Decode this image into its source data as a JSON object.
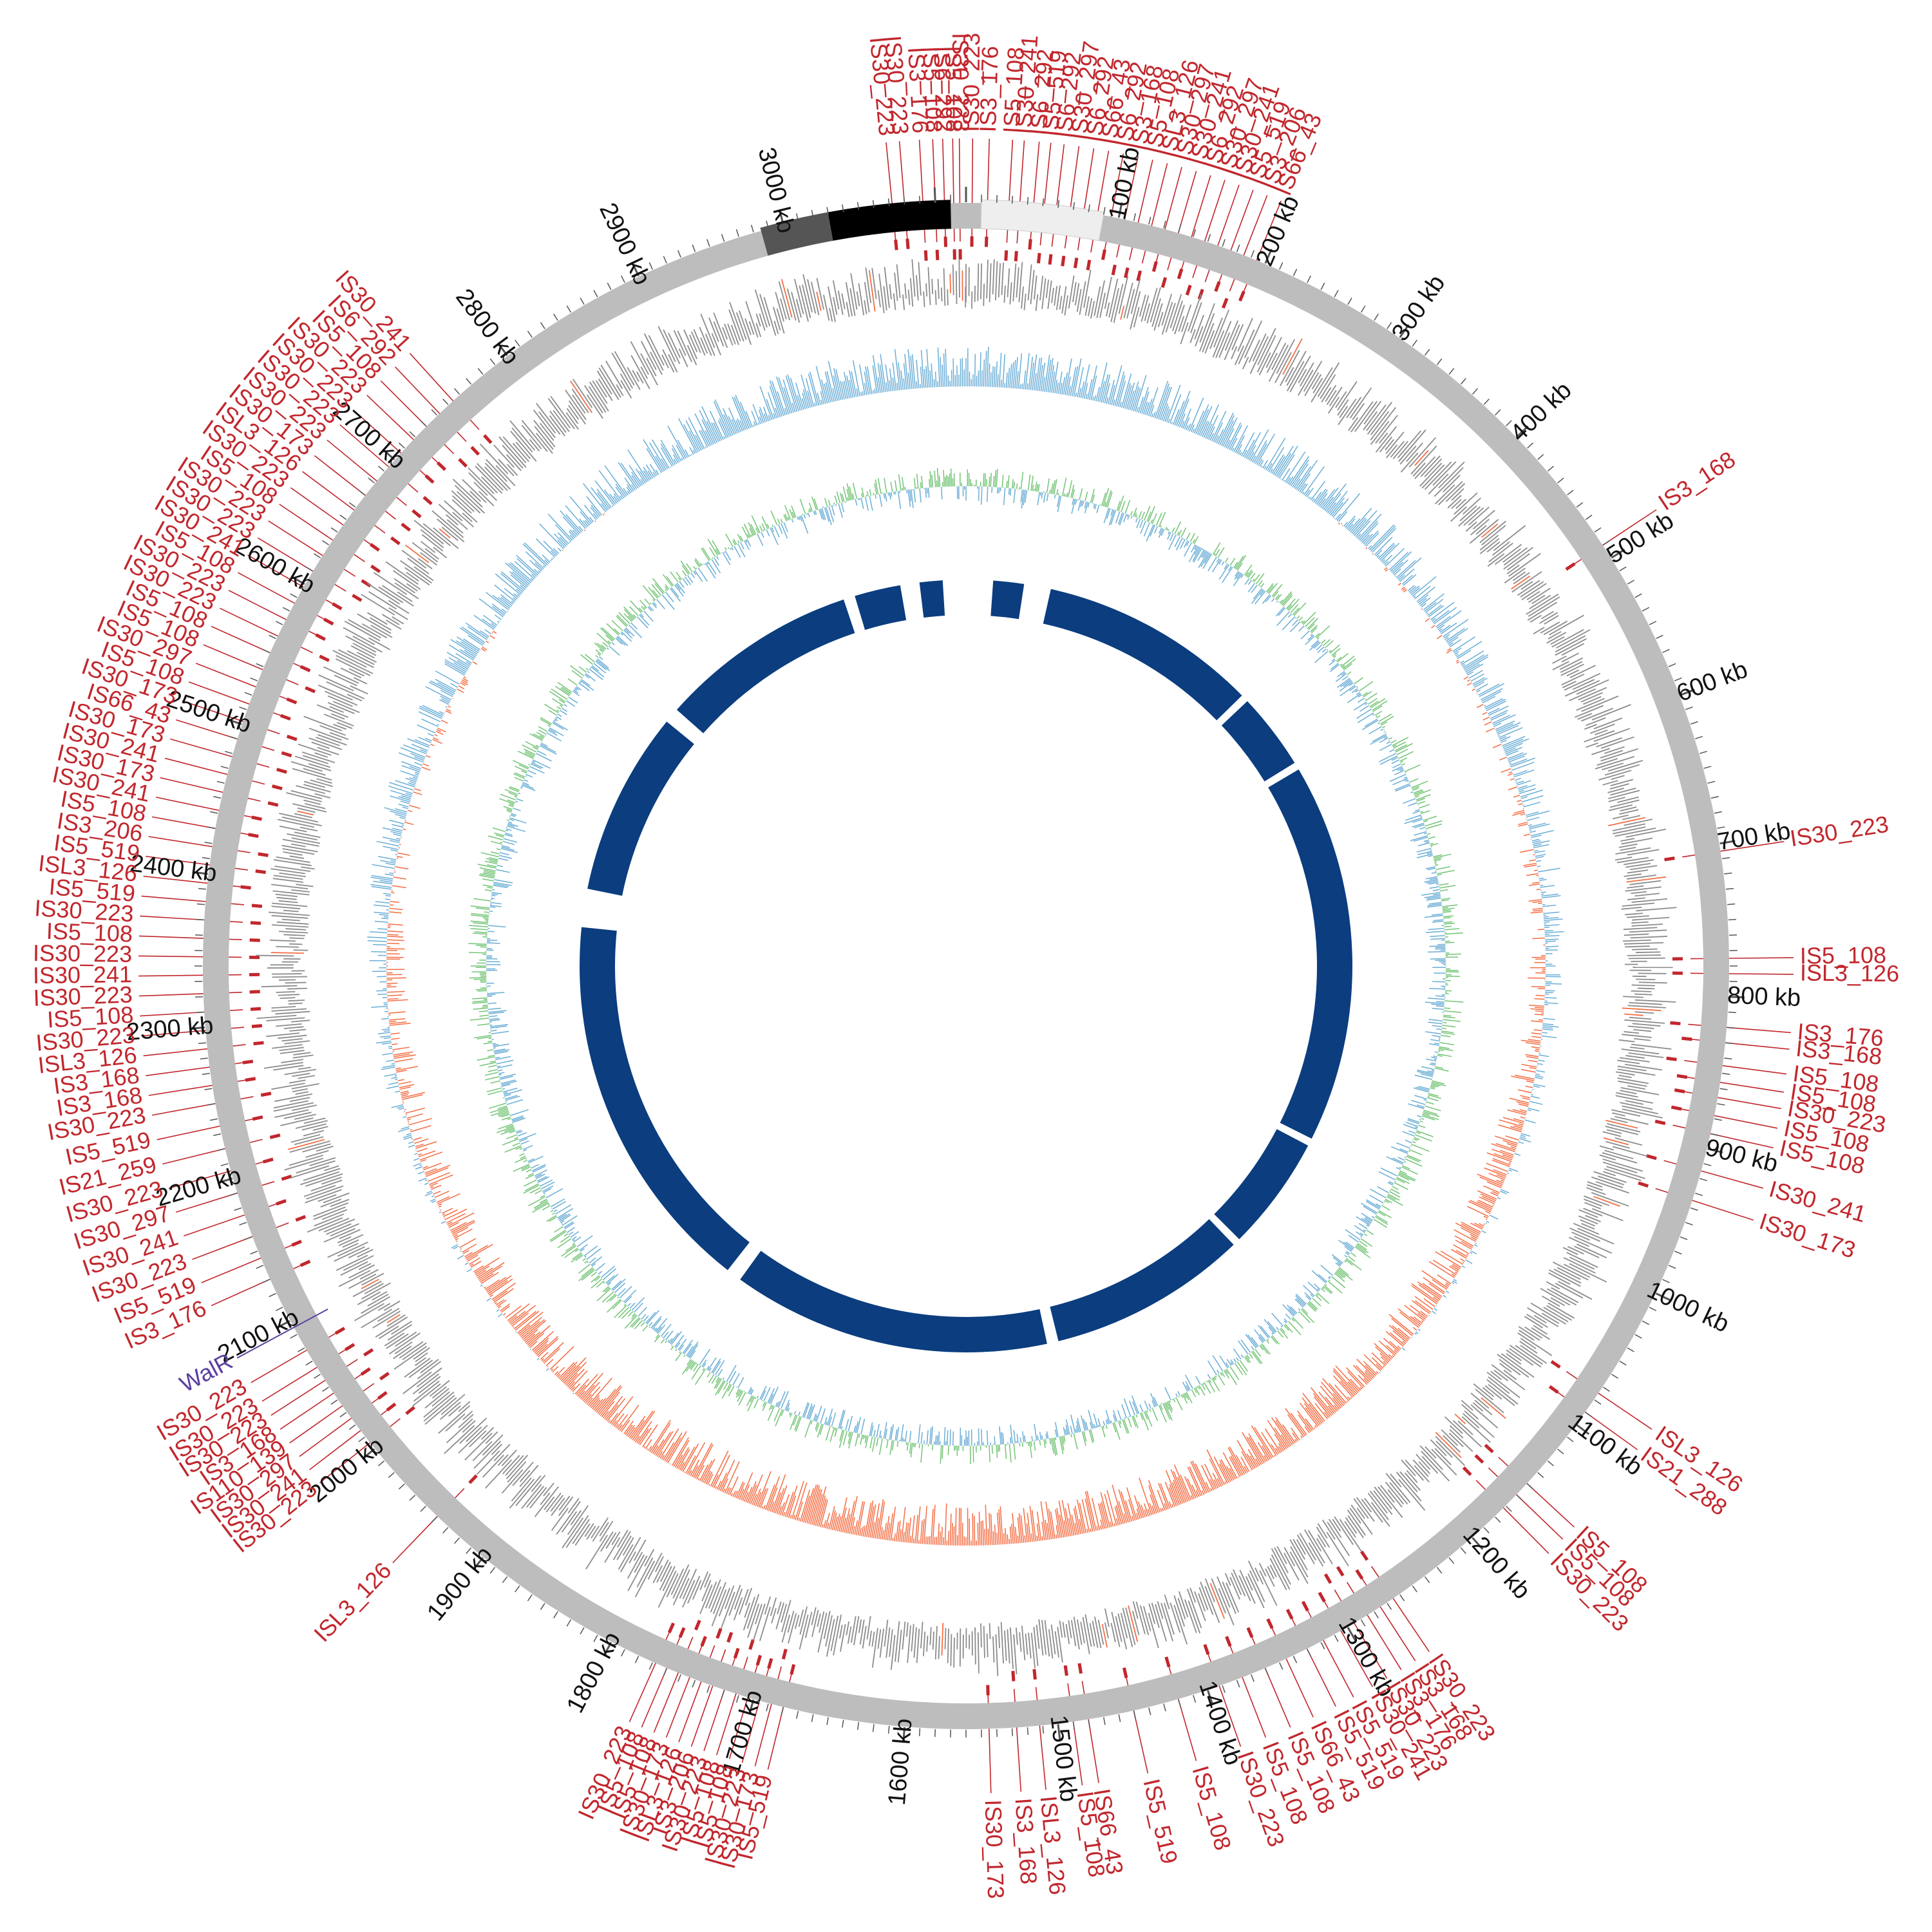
{
  "map": {
    "genome_length_kb": 3120,
    "kb_ticks": [
      100,
      200,
      300,
      400,
      500,
      600,
      700,
      800,
      900,
      1000,
      1100,
      1200,
      1300,
      1400,
      1500,
      1600,
      1700,
      1800,
      1900,
      2000,
      2100,
      2200,
      2300,
      2400,
      2500,
      2600,
      2700,
      2800,
      2900,
      3000
    ],
    "kb_unit": "kb",
    "colors": {
      "is_element": "#c1272d",
      "backbone": "#bdbdbd",
      "cds": "#8c8c8c",
      "gc_skew_positive": "#6baed6",
      "gc_skew_negative": "#f46d43",
      "gc_content": "#74c476",
      "blast_hits": "#0b3d7f",
      "gene_highlight": "#5b3fa0",
      "region_dark": "#555555",
      "region_black": "#000000",
      "region_light": "#eeeeee"
    },
    "highlighted_gene": {
      "label": "WalR",
      "position_kb": 2095
    },
    "is_labels": [
      {
        "text": "IS30_223",
        "kb": 3072
      },
      {
        "text": "IS30_223",
        "kb": 3080
      },
      {
        "text": "IS3_176",
        "kb": 3092
      },
      {
        "text": "IS5_108",
        "kb": 3100
      },
      {
        "text": "IS6_292",
        "kb": 3106
      },
      {
        "text": "IS5_108",
        "kb": 3112
      },
      {
        "text": "IS30_223",
        "kb": 3116
      },
      {
        "text": "IS30_223",
        "kb": 4
      },
      {
        "text": "IS3_176",
        "kb": 14
      },
      {
        "text": "IS5_108",
        "kb": 28
      },
      {
        "text": "IS30_241",
        "kb": 35
      },
      {
        "text": "IS6_292",
        "kb": 44
      },
      {
        "text": "IS5_519",
        "kb": 51
      },
      {
        "text": "IS6_292",
        "kb": 59
      },
      {
        "text": "IS30_297",
        "kb": 68
      },
      {
        "text": "IS6_292",
        "kb": 77
      },
      {
        "text": "IS66_43",
        "kb": 86
      },
      {
        "text": "IS6_292",
        "kb": 95
      },
      {
        "text": "IS3_168",
        "kb": 104
      },
      {
        "text": "IS5_108",
        "kb": 113
      },
      {
        "text": "ISL3_126",
        "kb": 122
      },
      {
        "text": "IS30_297",
        "kb": 131
      },
      {
        "text": "IS30_241",
        "kb": 140
      },
      {
        "text": "IS6_292",
        "kb": 149
      },
      {
        "text": "IS30_297",
        "kb": 158
      },
      {
        "text": "IS30_241",
        "kb": 167
      },
      {
        "text": "IS5_519",
        "kb": 176
      },
      {
        "text": "IS3_206",
        "kb": 185
      },
      {
        "text": "IS66_43",
        "kb": 194
      },
      {
        "text": "IS3_168",
        "kb": 490
      },
      {
        "text": "IS30_223",
        "kb": 705
      },
      {
        "text": "IS5_108",
        "kb": 775
      },
      {
        "text": "ISL3_126",
        "kb": 785
      },
      {
        "text": "IS3_176",
        "kb": 820
      },
      {
        "text": "IS3_168",
        "kb": 830
      },
      {
        "text": "IS5_108",
        "kb": 845
      },
      {
        "text": "IS5_108",
        "kb": 856
      },
      {
        "text": "IS30_223",
        "kb": 866
      },
      {
        "text": "IS5_108",
        "kb": 878
      },
      {
        "text": "IS5_108",
        "kb": 890
      },
      {
        "text": "IS30_241",
        "kb": 915
      },
      {
        "text": "IS30_173",
        "kb": 935
      },
      {
        "text": "ISL3_126",
        "kb": 1075
      },
      {
        "text": "IS21_288",
        "kb": 1090
      },
      {
        "text": "IS5_108",
        "kb": 1150
      },
      {
        "text": "IS5_108",
        "kb": 1160
      },
      {
        "text": "IS30_223",
        "kb": 1172
      },
      {
        "text": "IS30_223",
        "kb": 1265
      },
      {
        "text": "IS3_168",
        "kb": 1275
      },
      {
        "text": "IS3_176",
        "kb": 1285
      },
      {
        "text": "IS30_223",
        "kb": 1295
      },
      {
        "text": "IS30_241",
        "kb": 1305
      },
      {
        "text": "IS5_519",
        "kb": 1318
      },
      {
        "text": "IS5_519",
        "kb": 1330
      },
      {
        "text": "IS66_43",
        "kb": 1345
      },
      {
        "text": "IS5_108",
        "kb": 1360
      },
      {
        "text": "IS5_108",
        "kb": 1376
      },
      {
        "text": "IS30_223",
        "kb": 1392
      },
      {
        "text": "IS5_108",
        "kb": 1420
      },
      {
        "text": "IS5_519",
        "kb": 1450
      },
      {
        "text": "IS66_43",
        "kb": 1480
      },
      {
        "text": "IS5_108",
        "kb": 1490
      },
      {
        "text": "ISL3_126",
        "kb": 1512
      },
      {
        "text": "IS3_168",
        "kb": 1527
      },
      {
        "text": "IS30_173",
        "kb": 1545
      },
      {
        "text": "IS5_519",
        "kb": 1680
      },
      {
        "text": "IS30_173",
        "kb": 1688
      },
      {
        "text": "IS30_223",
        "kb": 1696
      },
      {
        "text": "IS5_108",
        "kb": 1704
      },
      {
        "text": "IS5_108",
        "kb": 1712
      },
      {
        "text": "IS30_223",
        "kb": 1720
      },
      {
        "text": "IS3_206",
        "kb": 1728
      },
      {
        "text": "ISL3_126",
        "kb": 1736
      },
      {
        "text": "IS30_173",
        "kb": 1744
      },
      {
        "text": "IS5_108",
        "kb": 1752
      },
      {
        "text": "IS5_108",
        "kb": 1760
      },
      {
        "text": "IS30_223",
        "kb": 1768
      },
      {
        "text": "ISL3_126",
        "kb": 1940
      },
      {
        "text": "IS30_223",
        "kb": 2005
      },
      {
        "text": "IS30_241",
        "kb": 2015
      },
      {
        "text": "IS30_297",
        "kb": 2025
      },
      {
        "text": "IS110_139",
        "kb": 2035
      },
      {
        "text": "IS3_168",
        "kb": 2045
      },
      {
        "text": "IS30_223",
        "kb": 2055
      },
      {
        "text": "IS30_223",
        "kb": 2065
      },
      {
        "text": "IS30_223",
        "kb": 2078
      },
      {
        "text": "IS3_176",
        "kb": 2130
      },
      {
        "text": "IS5_519",
        "kb": 2145
      },
      {
        "text": "IS30_223",
        "kb": 2160
      },
      {
        "text": "IS30_241",
        "kb": 2175
      },
      {
        "text": "IS30_297",
        "kb": 2190
      },
      {
        "text": "IS30_223",
        "kb": 2205
      },
      {
        "text": "IS21_259",
        "kb": 2220
      },
      {
        "text": "IS5_519",
        "kb": 2235
      },
      {
        "text": "IS30_223",
        "kb": 2250
      },
      {
        "text": "IS3_168",
        "kb": 2262
      },
      {
        "text": "IS3_168",
        "kb": 2274
      },
      {
        "text": "ISL3_126",
        "kb": 2286
      },
      {
        "text": "IS30_223",
        "kb": 2298
      },
      {
        "text": "IS5_108",
        "kb": 2310
      },
      {
        "text": "IS30_223",
        "kb": 2322
      },
      {
        "text": "IS30_241",
        "kb": 2334
      },
      {
        "text": "IS30_223",
        "kb": 2346
      },
      {
        "text": "IS5_108",
        "kb": 2358
      },
      {
        "text": "IS30_223",
        "kb": 2370
      },
      {
        "text": "IS5_519",
        "kb": 2382
      },
      {
        "text": "ISL3_126",
        "kb": 2394
      },
      {
        "text": "IS5_519",
        "kb": 2406
      },
      {
        "text": "IS3_206",
        "kb": 2418
      },
      {
        "text": "IS5_108",
        "kb": 2430
      },
      {
        "text": "IS30_241",
        "kb": 2442
      },
      {
        "text": "IS30_173",
        "kb": 2454
      },
      {
        "text": "IS30_241",
        "kb": 2466
      },
      {
        "text": "IS30_173",
        "kb": 2478
      },
      {
        "text": "IS66_43",
        "kb": 2490
      },
      {
        "text": "IS30_173",
        "kb": 2502
      },
      {
        "text": "IS5_108",
        "kb": 2514
      },
      {
        "text": "IS30_297",
        "kb": 2526
      },
      {
        "text": "IS5_108",
        "kb": 2538
      },
      {
        "text": "IS5_108",
        "kb": 2550
      },
      {
        "text": "IS30_223",
        "kb": 2562
      },
      {
        "text": "IS30_223",
        "kb": 2574
      },
      {
        "text": "IS5_108",
        "kb": 2586
      },
      {
        "text": "IS30_241",
        "kb": 2598
      },
      {
        "text": "IS30_223",
        "kb": 2610
      },
      {
        "text": "IS30_223",
        "kb": 2622
      },
      {
        "text": "IS5_108",
        "kb": 2634
      },
      {
        "text": "IS30_223",
        "kb": 2646
      },
      {
        "text": "ISL3_126",
        "kb": 2658
      },
      {
        "text": "IS30_173",
        "kb": 2670
      },
      {
        "text": "IS30_223",
        "kb": 2682
      },
      {
        "text": "IS30_223",
        "kb": 2694
      },
      {
        "text": "IS30_223",
        "kb": 2706
      },
      {
        "text": "IS30_223",
        "kb": 2718
      },
      {
        "text": "IS5_108",
        "kb": 2730
      },
      {
        "text": "IS6_292",
        "kb": 2742
      },
      {
        "text": "IS30_241",
        "kb": 2754
      }
    ]
  }
}
